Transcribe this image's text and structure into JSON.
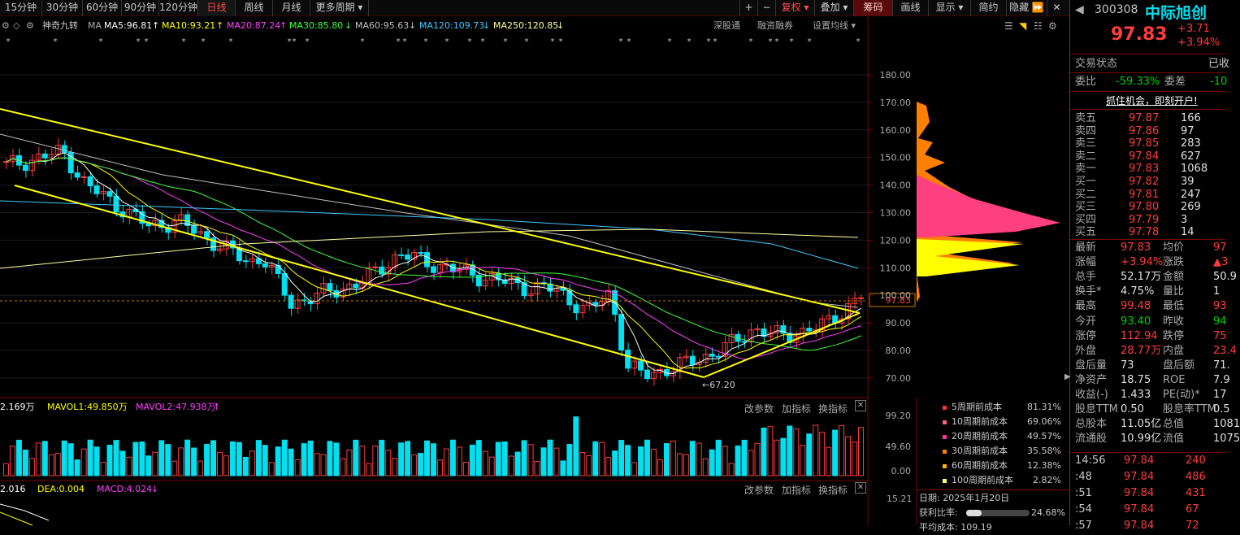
{
  "period_tabs": [
    "15分钟",
    "30分钟",
    "60分钟",
    "90分钟",
    "120分钟",
    "日线",
    "周线",
    "月线",
    "更多周期 ▾"
  ],
  "toolbar": {
    "plus": "+",
    "minus": "−",
    "fuquan": "复权 ▾",
    "diejia": "叠加 ▾",
    "chouma": "筹码",
    "huaxian": "画线",
    "xianshi": "显示 ▾",
    "jianyue": "简约",
    "yincang": "隐藏 ⏩",
    "close": "✕"
  },
  "ma_bar": {
    "name": "神奇九转",
    "ma_label": "MA",
    "ma5": "MA5:96.81",
    "ma10": "MA10:93.21",
    "ma20": "MA20:87.24",
    "ma30": "MA30:85.80",
    "ma60": "MA60:95.63",
    "ma120": "MA120:109.73",
    "ma250": "MA250:120.85",
    "a5": "↑",
    "a10": "↑",
    "a20": "↑",
    "a30": "↓",
    "a60": "↓",
    "a120": "↓",
    "a250": "↓"
  },
  "chart_tools": {
    "shengu": "深股通",
    "rongzi": "融资融券",
    "setma": "设置均线 ▾"
  },
  "price_axis": [
    "180.00",
    "170.00",
    "160.00",
    "150.00",
    "140.00",
    "130.00",
    "120.00",
    "110.00",
    "100.00",
    "90.00",
    "80.00",
    "70.00"
  ],
  "current_price_tag": "97.83",
  "low_label": "←67.20",
  "vol_header": {
    "vol": "2.169万",
    "mavol1": "MAVOL1:49.850万",
    "mavol2": "MAVOL2:47.938万",
    "arrow": "↑"
  },
  "vol_axis": [
    "99.20",
    "49.60",
    "0.00"
  ],
  "sub_tools": {
    "gaicanshu": "改参数",
    "jiazhibiao": "加指标",
    "huanzhibiao": "换指标"
  },
  "macd_header": {
    "dif": "2.016",
    "dea": "DEA:0.004",
    "macd": "MACD:4.024",
    "arrow": "↓"
  },
  "macd_axis": "15.21",
  "cost_table": [
    {
      "label": "5周期前成本",
      "pct": "81.31%",
      "color": "#ff3030"
    },
    {
      "label": "10周期前成本",
      "pct": "69.06%",
      "color": "#ff6080"
    },
    {
      "label": "20周期前成本",
      "pct": "49.57%",
      "color": "#ff30a0"
    },
    {
      "label": "30周期前成本",
      "pct": "35.58%",
      "color": "#ff8000"
    },
    {
      "label": "60周期前成本",
      "pct": "12.38%",
      "color": "#ffb000"
    },
    {
      "label": "100周期前成本",
      "pct": "2.82%",
      "color": "#ffff60"
    }
  ],
  "chip_info": {
    "date": "日期: 2025年1月20日",
    "profit_label": "获利比率:",
    "profit": "24.68%",
    "avg_cost": "平均成本: 109.19",
    "profit_ratio": 0.2468
  },
  "stock": {
    "code": "300308",
    "name": "中际旭创",
    "price": "97.83",
    "change": "+3.71",
    "pct": "+3.94%"
  },
  "trade_status": {
    "label": "交易状态",
    "value": "已收"
  },
  "weibi": {
    "label": "委比",
    "value": "-59.33%",
    "label2": "委差",
    "value2": "-10"
  },
  "promo": "抓住机会，即刻开户!",
  "asks": [
    {
      "label": "卖五",
      "price": "97.87",
      "vol": "166"
    },
    {
      "label": "卖四",
      "price": "97.86",
      "vol": "97"
    },
    {
      "label": "卖三",
      "price": "97.85",
      "vol": "283"
    },
    {
      "label": "卖二",
      "price": "97.84",
      "vol": "627"
    },
    {
      "label": "卖一",
      "price": "97.83",
      "vol": "1068"
    }
  ],
  "bids": [
    {
      "label": "买一",
      "price": "97.82",
      "vol": "39"
    },
    {
      "label": "买二",
      "price": "97.81",
      "vol": "247"
    },
    {
      "label": "买三",
      "price": "97.80",
      "vol": "269"
    },
    {
      "label": "买四",
      "price": "97.79",
      "vol": "3"
    },
    {
      "label": "买五",
      "price": "97.78",
      "vol": "14"
    }
  ],
  "quote": [
    {
      "l1": "最新",
      "v1": "97.83",
      "l2": "均价",
      "v2": "97"
    },
    {
      "l1": "涨幅",
      "v1": "+3.94%",
      "l2": "涨跌",
      "v2": "▲3"
    },
    {
      "l1": "总手",
      "v1": "52.17万",
      "l2": "金额",
      "v2": "50.9"
    },
    {
      "l1": "换手*",
      "v1": "4.75%",
      "l2": "量比",
      "v2": "1"
    },
    {
      "l1": "最高",
      "v1": "99.48",
      "l2": "最低",
      "v2": "93"
    },
    {
      "l1": "今开",
      "v1": "93.40",
      "l2": "昨收",
      "v2": "94"
    },
    {
      "l1": "涨停",
      "v1": "112.94",
      "l2": "跌停",
      "v2": "75"
    },
    {
      "l1": "外盘",
      "v1": "28.77万",
      "l2": "内盘",
      "v2": "23.4"
    },
    {
      "l1": "盘后量",
      "v1": "73",
      "l2": "盘后额",
      "v2": "71."
    },
    {
      "l1": "净资产",
      "v1": "18.75",
      "l2": "ROE",
      "v2": "7.9"
    },
    {
      "l1": "收益(-)",
      "v1": "1.433",
      "l2": "PE(动)*",
      "v2": "17"
    },
    {
      "l1": "股息TTM",
      "v1": "0.50",
      "l2": "股息率TTM",
      "v2": "0.5"
    },
    {
      "l1": "总股本",
      "v1": "11.05亿",
      "l2": "总值",
      "v2": "1081"
    },
    {
      "l1": "流通股",
      "v1": "10.99亿",
      "l2": "流值",
      "v2": "1075"
    }
  ],
  "ticks": [
    {
      "time": "14:56",
      "price": "97.84",
      "vol": "240"
    },
    {
      "time": ":48",
      "price": "97.84",
      "vol": "486"
    },
    {
      "time": ":51",
      "price": "97.84",
      "vol": "431"
    },
    {
      "time": ":54",
      "price": "97.84",
      "vol": "67"
    },
    {
      "time": ":57",
      "price": "97.84",
      "vol": "72"
    }
  ],
  "colors": {
    "up": "#ff3c3c",
    "down": "#00e0f0",
    "yellow": "#ffff00",
    "panel_border": "#7a0000"
  }
}
